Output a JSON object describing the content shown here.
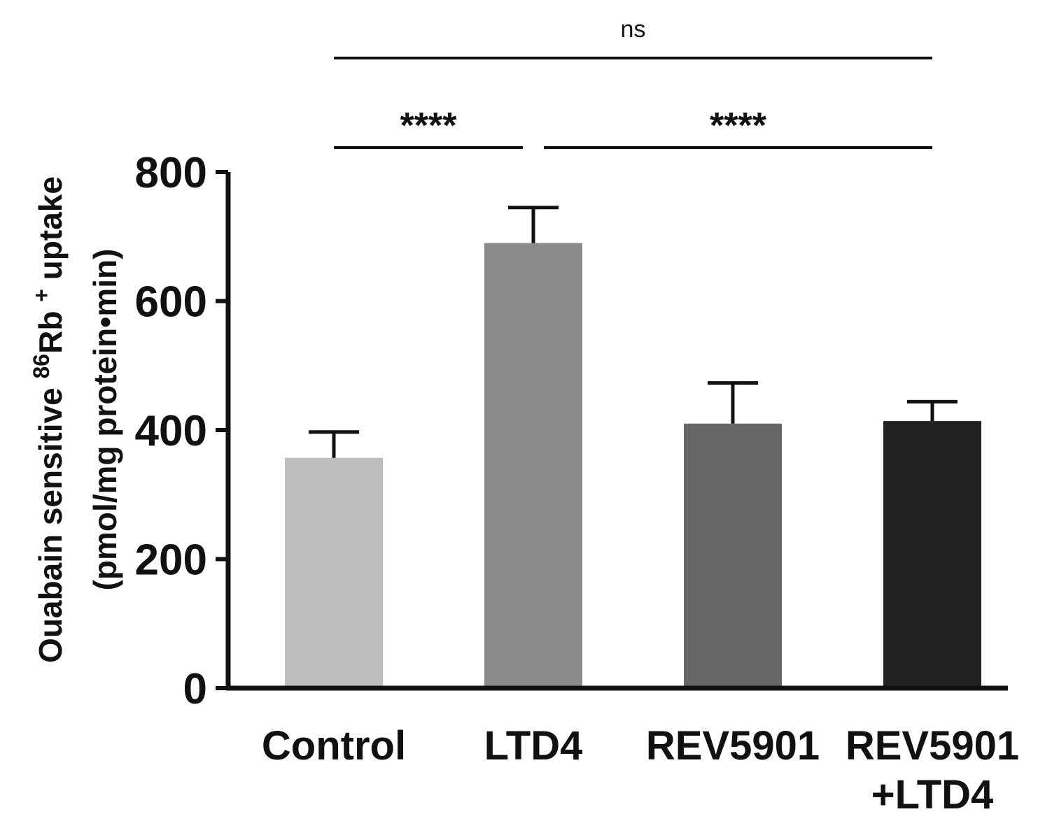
{
  "chart_data": {
    "type": "bar",
    "title": "",
    "categories": [
      {
        "lines": [
          "Control"
        ]
      },
      {
        "lines": [
          "LTD4"
        ]
      },
      {
        "lines": [
          "REV5901"
        ]
      },
      {
        "lines": [
          "REV5901",
          "+LTD4"
        ]
      }
    ],
    "values": [
      357,
      690,
      410,
      414
    ],
    "errors": [
      40,
      55,
      63,
      30
    ],
    "colors": [
      "#bdbdbd",
      "#8a8a8a",
      "#666666",
      "#222222"
    ],
    "ylim": [
      0,
      800
    ],
    "yticks": [
      0,
      200,
      400,
      600,
      800
    ],
    "ylabel": {
      "line1_before": "Ouabain sensitive ",
      "superscript": "86",
      "line1_after": "Rb ",
      "superscript2": "+",
      "line1_end": " uptake",
      "line2": "(pmol/mg protein•min)"
    },
    "xlabel": "",
    "significance": [
      {
        "from": 0,
        "to": 1,
        "label": "****",
        "level": 1
      },
      {
        "from": 1,
        "to": 3,
        "label": "****",
        "level": 1
      },
      {
        "from": 0,
        "to": 3,
        "label": "ns",
        "level": 2
      }
    ]
  }
}
